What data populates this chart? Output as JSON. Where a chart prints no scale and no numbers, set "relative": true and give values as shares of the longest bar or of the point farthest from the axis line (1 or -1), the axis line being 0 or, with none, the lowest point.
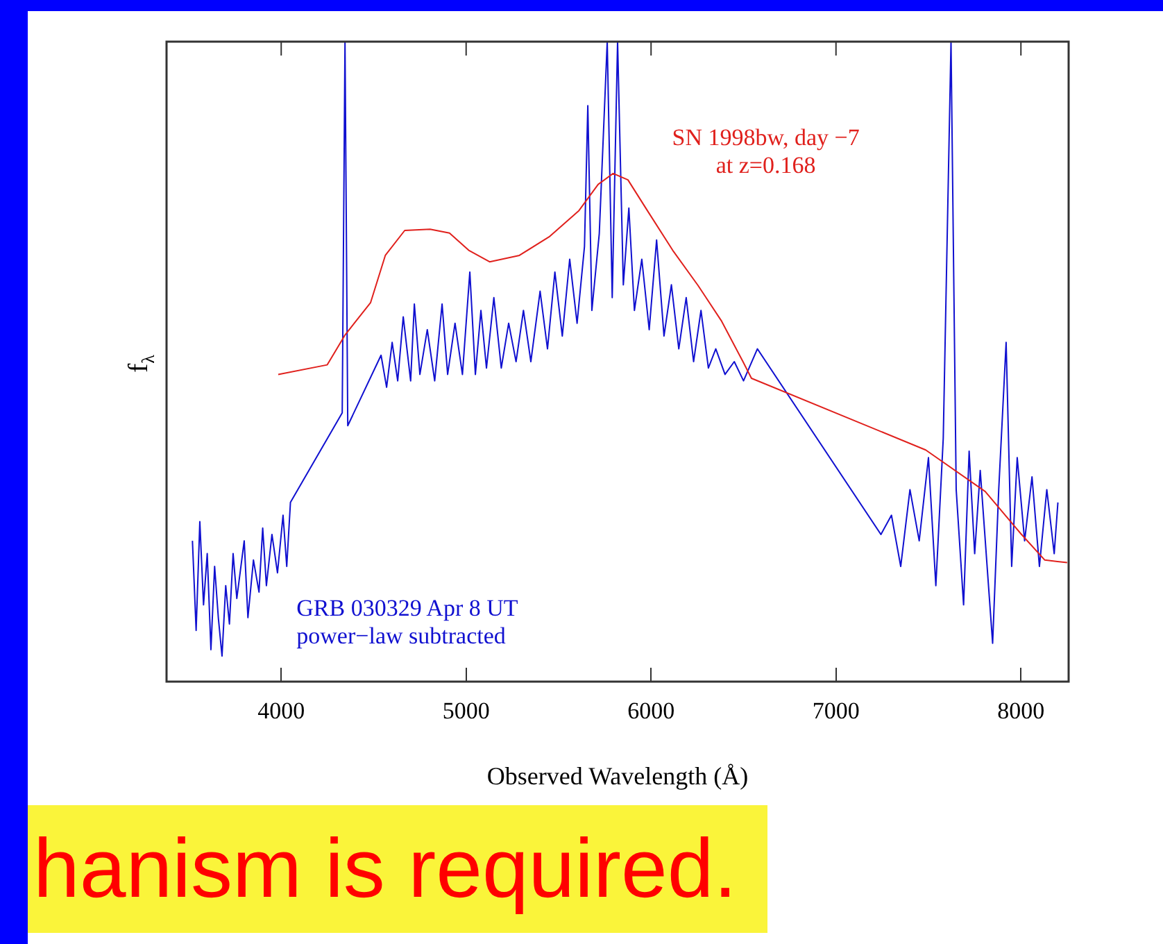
{
  "chart_data": {
    "type": "line",
    "xlabel": "Observed Wavelength (Å)",
    "ylabel": "f$_{λ}$",
    "relative": true,
    "xlim": [
      3380,
      8258
    ],
    "xticks": [
      4000,
      5000,
      6000,
      7000,
      8000
    ],
    "tick_labels": "x",
    "marker": "none",
    "grid": false,
    "annotations": [
      "hanism is required."
    ],
    "series": [
      {
        "name": "SN 1998bw, day −7\nat z=0.168",
        "color": "#e0201c",
        "x": [
          3984,
          4249,
          4346,
          4483,
          4563,
          4668,
          4805,
          4910,
          5014,
          5127,
          5288,
          5449,
          5610,
          5714,
          5795,
          5875,
          5980,
          6117,
          6254,
          6382,
          6495,
          6543,
          7485,
          7807,
          8000,
          8129,
          8250
        ],
        "values": [
          0.48,
          0.495,
          0.542,
          0.592,
          0.666,
          0.705,
          0.707,
          0.701,
          0.674,
          0.656,
          0.666,
          0.695,
          0.736,
          0.777,
          0.794,
          0.784,
          0.736,
          0.674,
          0.619,
          0.563,
          0.501,
          0.474,
          0.362,
          0.297,
          0.231,
          0.19,
          0.186
        ]
      },
      {
        "name": "GRB 030329 Apr 8 UT\npower−law subtracted",
        "color": "#1010d0",
        "x": [
          3520,
          3540,
          3560,
          3580,
          3600,
          3620,
          3640,
          3660,
          3680,
          3700,
          3720,
          3740,
          3760,
          3800,
          3820,
          3850,
          3880,
          3900,
          3920,
          3950,
          3980,
          4010,
          4030,
          4050,
          4330,
          4345,
          4360,
          4540,
          4570,
          4600,
          4630,
          4660,
          4700,
          4720,
          4750,
          4790,
          4830,
          4870,
          4900,
          4940,
          4980,
          5020,
          5050,
          5080,
          5110,
          5150,
          5190,
          5230,
          5270,
          5310,
          5350,
          5400,
          5440,
          5480,
          5520,
          5560,
          5600,
          5640,
          5658,
          5680,
          5720,
          5763,
          5790,
          5819,
          5850,
          5880,
          5910,
          5950,
          5990,
          6030,
          6070,
          6110,
          6150,
          6190,
          6230,
          6270,
          6310,
          6350,
          6400,
          6450,
          6500,
          6575,
          7243,
          7300,
          7350,
          7400,
          7450,
          7500,
          7540,
          7580,
          7622,
          7650,
          7690,
          7720,
          7750,
          7780,
          7847,
          7880,
          7920,
          7950,
          7980,
          8020,
          8060,
          8100,
          8140,
          8180,
          8200
        ],
        "values": [
          0.22,
          0.08,
          0.25,
          0.12,
          0.2,
          0.05,
          0.18,
          0.1,
          0.04,
          0.15,
          0.09,
          0.2,
          0.13,
          0.22,
          0.1,
          0.19,
          0.14,
          0.24,
          0.15,
          0.23,
          0.17,
          0.26,
          0.18,
          0.28,
          0.42,
          1,
          0.4,
          0.51,
          0.46,
          0.53,
          0.47,
          0.57,
          0.47,
          0.59,
          0.48,
          0.55,
          0.47,
          0.59,
          0.48,
          0.56,
          0.48,
          0.64,
          0.48,
          0.58,
          0.49,
          0.6,
          0.49,
          0.56,
          0.5,
          0.58,
          0.5,
          0.61,
          0.52,
          0.64,
          0.54,
          0.66,
          0.56,
          0.68,
          0.9,
          0.58,
          0.7,
          1,
          0.6,
          1,
          0.62,
          0.74,
          0.58,
          0.66,
          0.55,
          0.69,
          0.54,
          0.62,
          0.52,
          0.6,
          0.5,
          0.58,
          0.49,
          0.52,
          0.48,
          0.5,
          0.47,
          0.52,
          0.23,
          0.26,
          0.18,
          0.3,
          0.22,
          0.35,
          0.15,
          0.38,
          1,
          0.3,
          0.12,
          0.36,
          0.2,
          0.33,
          0.06,
          0.3,
          0.53,
          0.18,
          0.35,
          0.22,
          0.32,
          0.18,
          0.3,
          0.2,
          0.28
        ]
      }
    ]
  }
}
